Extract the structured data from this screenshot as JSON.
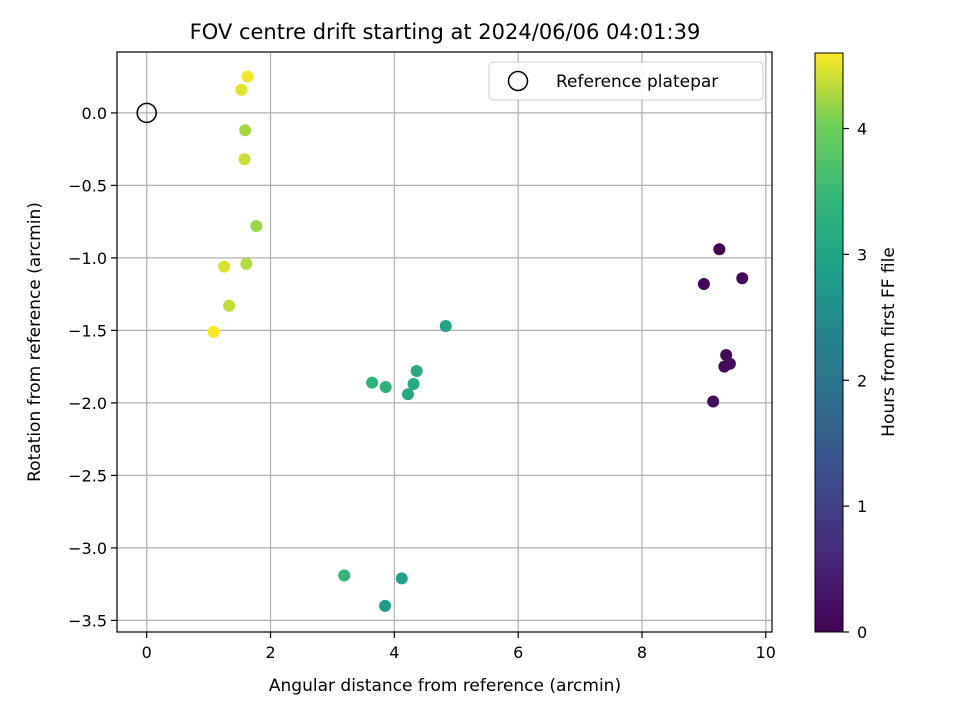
{
  "chart_data": {
    "type": "scatter",
    "title": "FOV centre drift starting at 2024/06/06 04:01:39",
    "xlabel": "Angular distance from reference (arcmin)",
    "ylabel": "Rotation from reference (arcmin)",
    "xlim": [
      -0.48,
      10.1
    ],
    "ylim": [
      -3.58,
      0.42
    ],
    "xticks": [
      0,
      2,
      4,
      6,
      8,
      10
    ],
    "yticks": [
      0.0,
      -0.5,
      -1.0,
      -1.5,
      -2.0,
      -2.5,
      -3.0,
      -3.5
    ],
    "xtick_labels": [
      "0",
      "2",
      "4",
      "6",
      "8",
      "10"
    ],
    "ytick_labels": [
      "0.0",
      "−0.5",
      "−1.0",
      "−1.5",
      "−2.0",
      "−2.5",
      "−3.0",
      "−3.5"
    ],
    "grid": true,
    "colormap": "viridis",
    "colorbar": {
      "label": "Hours from first FF file",
      "range": [
        0,
        4.6
      ],
      "ticks": [
        0,
        1,
        2,
        3,
        4
      ],
      "tick_labels": [
        "0",
        "1",
        "2",
        "3",
        "4"
      ]
    },
    "legend": {
      "placement": "top-right",
      "entries": [
        {
          "label": "Reference platepar",
          "marker": "open-circle"
        }
      ]
    },
    "reference_point": {
      "x": 0,
      "y": 0,
      "marker_color": "#000000"
    },
    "points": [
      {
        "x": 9.25,
        "y": -0.94,
        "hours": 0.0
      },
      {
        "x": 9.0,
        "y": -1.18,
        "hours": 0.05
      },
      {
        "x": 9.62,
        "y": -1.14,
        "hours": 0.08
      },
      {
        "x": 9.36,
        "y": -1.67,
        "hours": 0.1
      },
      {
        "x": 9.33,
        "y": -1.75,
        "hours": 0.12
      },
      {
        "x": 9.42,
        "y": -1.73,
        "hours": 0.15
      },
      {
        "x": 9.15,
        "y": -1.99,
        "hours": 0.18
      },
      {
        "x": 3.85,
        "y": -3.4,
        "hours": 2.85
      },
      {
        "x": 4.12,
        "y": -3.21,
        "hours": 2.95
      },
      {
        "x": 4.83,
        "y": -1.47,
        "hours": 3.0
      },
      {
        "x": 4.22,
        "y": -1.94,
        "hours": 3.05
      },
      {
        "x": 4.31,
        "y": -1.87,
        "hours": 3.1
      },
      {
        "x": 4.36,
        "y": -1.78,
        "hours": 3.12
      },
      {
        "x": 3.86,
        "y": -1.89,
        "hours": 3.3
      },
      {
        "x": 3.64,
        "y": -1.86,
        "hours": 3.35
      },
      {
        "x": 3.19,
        "y": -3.19,
        "hours": 3.4
      },
      {
        "x": 1.77,
        "y": -0.78,
        "hours": 4.2
      },
      {
        "x": 1.59,
        "y": -0.12,
        "hours": 4.25
      },
      {
        "x": 1.61,
        "y": -1.04,
        "hours": 4.3
      },
      {
        "x": 1.33,
        "y": -1.33,
        "hours": 4.35
      },
      {
        "x": 1.58,
        "y": -0.32,
        "hours": 4.4
      },
      {
        "x": 1.25,
        "y": -1.06,
        "hours": 4.45
      },
      {
        "x": 1.53,
        "y": 0.16,
        "hours": 4.5
      },
      {
        "x": 1.63,
        "y": 0.25,
        "hours": 4.55
      },
      {
        "x": 1.08,
        "y": -1.51,
        "hours": 4.6
      }
    ]
  }
}
